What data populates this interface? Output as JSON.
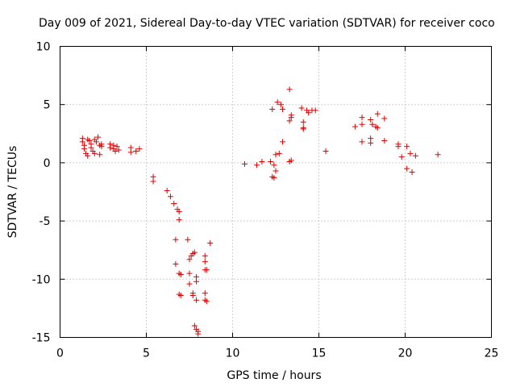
{
  "chart_data": {
    "type": "scatter",
    "title": "Day 009 of 2021, Sidereal Day-to-day VTEC variation (SDTVAR) for receiver coco",
    "xlabel": "GPS time / hours",
    "ylabel": "SDTVAR / TECUs",
    "xlim": [
      0,
      25
    ],
    "ylim": [
      -15,
      10
    ],
    "xticks": [
      "0",
      "5",
      "10",
      "15",
      "20",
      "25"
    ],
    "yticks": [
      "10",
      "5",
      "0",
      "-5",
      "-10",
      "-15"
    ],
    "grid": true,
    "marker": "+",
    "color": "#e00000",
    "points": [
      [
        1.3,
        2.1
      ],
      [
        1.3,
        1.8
      ],
      [
        1.4,
        1.5
      ],
      [
        1.4,
        1.2
      ],
      [
        1.5,
        0.8
      ],
      [
        1.6,
        0.6
      ],
      [
        1.6,
        2.0
      ],
      [
        1.7,
        1.9
      ],
      [
        1.8,
        1.6
      ],
      [
        1.8,
        1.3
      ],
      [
        1.9,
        1.0
      ],
      [
        2.0,
        2.0
      ],
      [
        2.0,
        0.8
      ],
      [
        2.1,
        1.8
      ],
      [
        2.2,
        2.2
      ],
      [
        2.3,
        1.5
      ],
      [
        2.3,
        0.7
      ],
      [
        2.4,
        1.4
      ],
      [
        2.4,
        1.6
      ],
      [
        2.9,
        1.6
      ],
      [
        2.9,
        1.3
      ],
      [
        3.1,
        1.5
      ],
      [
        3.1,
        1.2
      ],
      [
        3.2,
        1.0
      ],
      [
        3.3,
        1.4
      ],
      [
        3.4,
        1.1
      ],
      [
        4.1,
        1.3
      ],
      [
        4.1,
        0.9
      ],
      [
        4.4,
        1.0
      ],
      [
        4.6,
        1.2
      ],
      [
        5.4,
        -1.2
      ],
      [
        5.4,
        -1.6
      ],
      [
        6.2,
        -2.4
      ],
      [
        6.4,
        -2.9
      ],
      [
        6.6,
        -3.5
      ],
      [
        6.8,
        -4.0
      ],
      [
        6.9,
        -4.2
      ],
      [
        6.9,
        -4.9
      ],
      [
        6.7,
        -6.6
      ],
      [
        6.7,
        -8.7
      ],
      [
        6.9,
        -9.5
      ],
      [
        7.0,
        -9.6
      ],
      [
        6.9,
        -11.3
      ],
      [
        7.0,
        -11.4
      ],
      [
        7.4,
        -6.6
      ],
      [
        7.5,
        -8.3
      ],
      [
        7.5,
        -9.5
      ],
      [
        7.5,
        -10.4
      ],
      [
        7.6,
        -8.0
      ],
      [
        7.7,
        -7.8
      ],
      [
        7.7,
        -11.2
      ],
      [
        7.7,
        -11.4
      ],
      [
        7.8,
        -7.7
      ],
      [
        7.9,
        -10.2
      ],
      [
        7.9,
        -9.8
      ],
      [
        7.9,
        -11.8
      ],
      [
        7.8,
        -14.0
      ],
      [
        7.9,
        -14.3
      ],
      [
        8.0,
        -14.5
      ],
      [
        8.0,
        -14.7
      ],
      [
        8.4,
        -8.0
      ],
      [
        8.4,
        -8.5
      ],
      [
        8.4,
        -9.2
      ],
      [
        8.5,
        -9.2
      ],
      [
        8.4,
        -11.2
      ],
      [
        8.4,
        -11.8
      ],
      [
        8.5,
        -11.9
      ],
      [
        8.7,
        -6.9
      ],
      [
        10.7,
        -0.1
      ],
      [
        11.4,
        -0.2
      ],
      [
        11.7,
        0.1
      ],
      [
        12.2,
        0.1
      ],
      [
        12.3,
        -1.2
      ],
      [
        12.4,
        -1.3
      ],
      [
        12.4,
        -0.2
      ],
      [
        12.5,
        -0.7
      ],
      [
        12.5,
        0.7
      ],
      [
        12.6,
        5.2
      ],
      [
        12.8,
        5.0
      ],
      [
        12.9,
        4.6
      ],
      [
        12.9,
        1.8
      ],
      [
        12.3,
        4.6
      ],
      [
        12.7,
        0.8
      ],
      [
        13.3,
        6.3
      ],
      [
        13.4,
        4.1
      ],
      [
        13.4,
        3.9
      ],
      [
        13.3,
        3.6
      ],
      [
        13.4,
        0.2
      ],
      [
        13.3,
        0.1
      ],
      [
        14.0,
        4.7
      ],
      [
        14.1,
        3.5
      ],
      [
        14.1,
        2.9
      ],
      [
        14.1,
        3.0
      ],
      [
        14.3,
        4.5
      ],
      [
        14.4,
        4.3
      ],
      [
        14.6,
        4.5
      ],
      [
        14.8,
        4.5
      ],
      [
        15.4,
        1.0
      ],
      [
        17.1,
        3.1
      ],
      [
        17.5,
        3.9
      ],
      [
        17.5,
        3.3
      ],
      [
        17.5,
        1.8
      ],
      [
        18.0,
        3.7
      ],
      [
        18.0,
        2.1
      ],
      [
        18.0,
        1.7
      ],
      [
        18.1,
        3.3
      ],
      [
        18.3,
        3.1
      ],
      [
        18.4,
        4.2
      ],
      [
        18.4,
        3.0
      ],
      [
        18.8,
        3.8
      ],
      [
        18.8,
        1.9
      ],
      [
        19.6,
        1.6
      ],
      [
        19.6,
        1.4
      ],
      [
        19.8,
        0.5
      ],
      [
        20.1,
        1.4
      ],
      [
        20.1,
        -0.5
      ],
      [
        20.3,
        0.8
      ],
      [
        20.4,
        -0.8
      ],
      [
        20.6,
        0.6
      ],
      [
        21.9,
        0.7
      ]
    ]
  }
}
